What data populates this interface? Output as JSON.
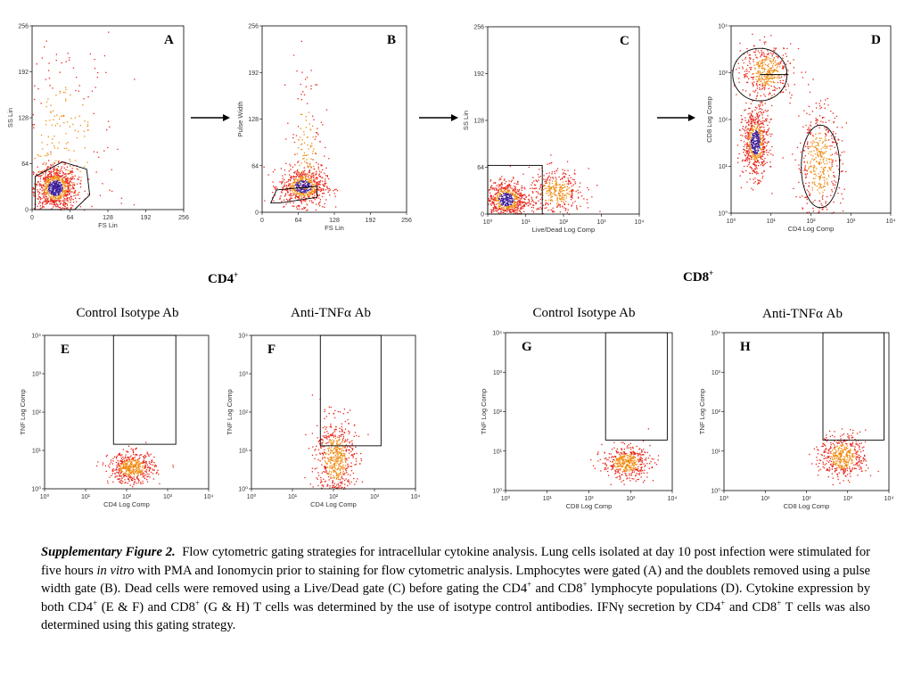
{
  "figure": {
    "panels": [
      {
        "letter": "A",
        "xlabel": "FS Lin",
        "ylabel": "SS Lin",
        "xticks": [
          "0",
          "64",
          "128",
          "192",
          "256"
        ],
        "yticks": [
          "0",
          "64",
          "128",
          "192",
          "256"
        ]
      },
      {
        "letter": "B",
        "xlabel": "FS Lin",
        "ylabel": "Pulse Width",
        "xticks": [
          "0",
          "64",
          "128",
          "192",
          "256"
        ],
        "yticks": [
          "0",
          "64",
          "128",
          "192",
          "256"
        ]
      },
      {
        "letter": "C",
        "xlabel": "Live/Dead Log Comp",
        "ylabel": "SS Lin",
        "xticks": [
          "10⁰",
          "10¹",
          "10²",
          "10³",
          "10⁴"
        ],
        "yticks": [
          "0",
          "64",
          "128",
          "192",
          "256"
        ]
      },
      {
        "letter": "D",
        "xlabel": "CD4 Log Comp",
        "ylabel": "CD8 Log Comp",
        "xticks": [
          "10⁰",
          "10¹",
          "10²",
          "10³",
          "10⁴"
        ],
        "yticks": [
          "10⁰",
          "10¹",
          "10²",
          "10³",
          "10⁴"
        ]
      },
      {
        "letter": "E",
        "xlabel": "CD4 Log Comp",
        "ylabel": "TNF Log Comp",
        "xticks": [
          "10⁰",
          "10¹",
          "10²",
          "10³",
          "10⁴"
        ],
        "yticks": [
          "10⁰",
          "10¹",
          "10²",
          "10³",
          "10⁴"
        ]
      },
      {
        "letter": "F",
        "xlabel": "CD4 Log Comp",
        "ylabel": "TNF Log Comp",
        "xticks": [
          "10⁰",
          "10¹",
          "10²",
          "10³",
          "10⁴"
        ],
        "yticks": [
          "10⁰",
          "10¹",
          "10²",
          "10³",
          "10⁴"
        ]
      },
      {
        "letter": "G",
        "xlabel": "CD8 Log Comp",
        "ylabel": "TNF Log Comp",
        "xticks": [
          "10⁰",
          "10¹",
          "10²",
          "10³",
          "10⁴"
        ],
        "yticks": [
          "10⁰",
          "10¹",
          "10²",
          "10³",
          "10⁴"
        ]
      },
      {
        "letter": "H",
        "xlabel": "CD8 Log Comp",
        "ylabel": "TNF Log Comp",
        "xticks": [
          "10⁰",
          "10¹",
          "10²",
          "10³",
          "10⁴"
        ],
        "yticks": [
          "10⁰",
          "10¹",
          "10²",
          "10³",
          "10⁴"
        ]
      }
    ],
    "group_labels": {
      "cd4": "CD4",
      "cd8": "CD8",
      "sup": "+"
    },
    "column_labels": {
      "e": "Control Isotype Ab",
      "f": "Anti-TNFα Ab",
      "g": "Control Isotype Ab",
      "h": "Anti-TNFα Ab"
    },
    "colors": {
      "points": "#e8261a",
      "dense": "#f08a10",
      "core": "#3a1a9a",
      "gate": "#000000"
    }
  },
  "caption": {
    "title": "Supplementary Figure 2.",
    "s1": "Flow cytometric gating strategies for intracellular cytokine analysis.  Lung cells isolated at day 10 post infection were stimulated for five hours ",
    "s1_italic": "in vitro",
    "s2": " with PMA and Ionomycin prior to staining for flow cytometric analysis.  Lmphocytes were gated (A) and the doublets removed using a pulse width gate (B).  Dead cells were removed using a Live/Dead gate (C) before gating the CD4",
    "s3": " and CD8",
    "s4": " lymphocyte populations (D). Cytokine expression by both CD4",
    "s5": " (E & F) and CD8",
    "s6": " (G & H) T cells was determined by the use of isotype control antibodies.  IFNγ secretion by CD4",
    "s7": " and CD8",
    "s8": " T cells was also determined using this gating strategy.",
    "sup": "+"
  }
}
